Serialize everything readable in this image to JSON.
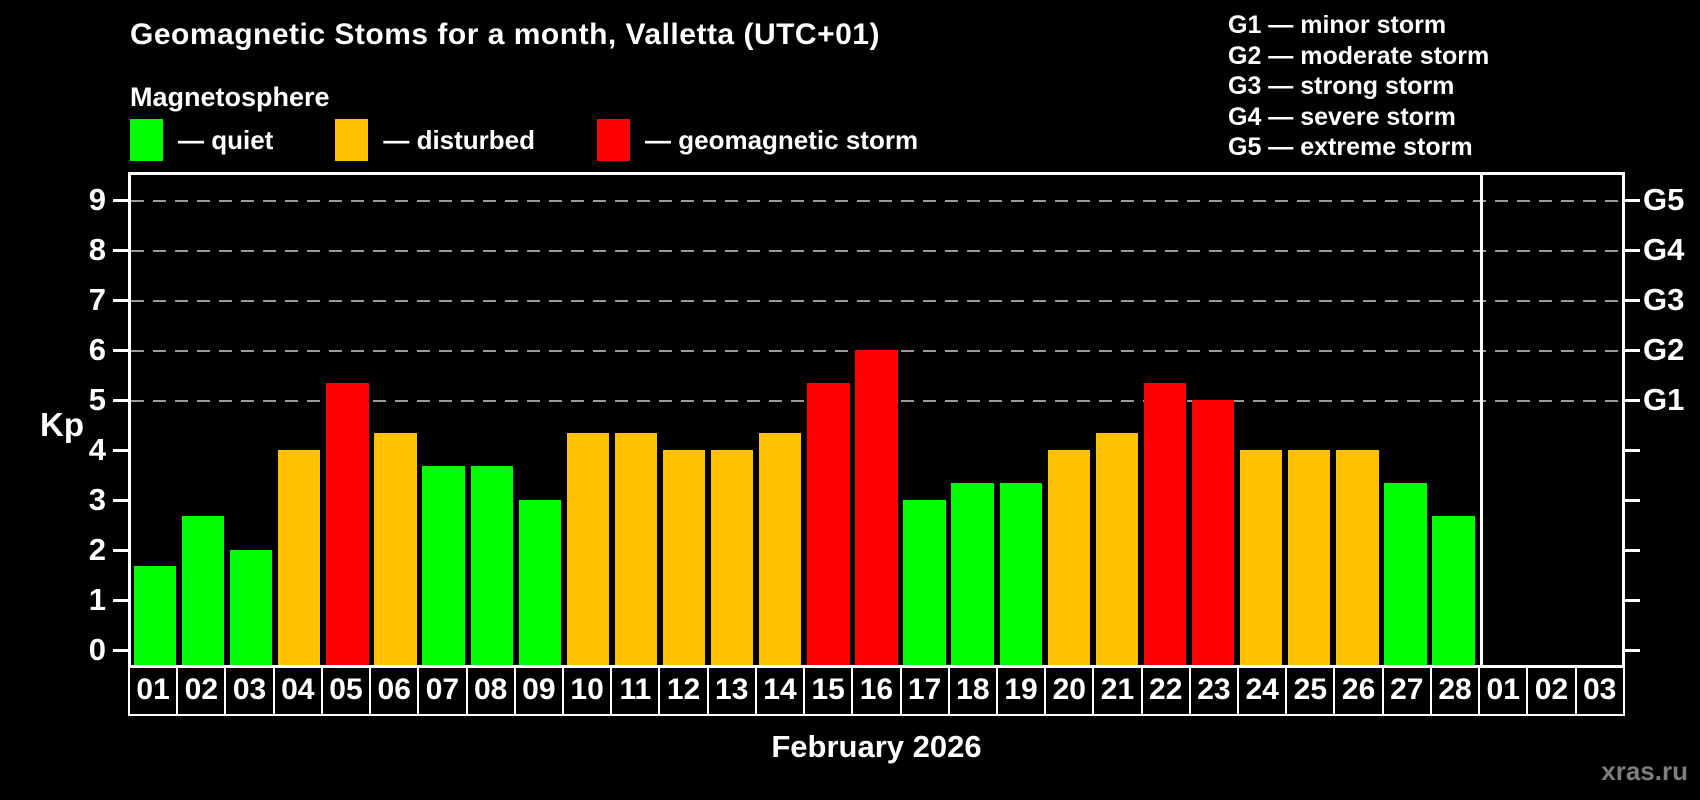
{
  "header": {
    "title": "Geomagnetic Stoms for a month, Valletta (UTC+01)"
  },
  "legend": {
    "heading": "Magnetosphere",
    "items": [
      {
        "name": "quiet",
        "label": "— quiet",
        "color": "#00ff00"
      },
      {
        "name": "disturbed",
        "label": "— disturbed",
        "color": "#ffc000"
      },
      {
        "name": "storm",
        "label": "— geomagnetic storm",
        "color": "#ff0000"
      }
    ]
  },
  "g_legend": {
    "items": [
      "G1 — minor storm",
      "G2 — moderate storm",
      "G3 — strong storm",
      "G4 — severe storm",
      "G5 — extreme storm"
    ]
  },
  "axes": {
    "left_label": "Kp",
    "left_ticks": [
      0,
      1,
      2,
      3,
      4,
      5,
      6,
      7,
      8,
      9
    ],
    "right_labels": [
      {
        "label": "G1",
        "kp": 5
      },
      {
        "label": "G2",
        "kp": 6
      },
      {
        "label": "G3",
        "kp": 7
      },
      {
        "label": "G4",
        "kp": 8
      },
      {
        "label": "G5",
        "kp": 9
      }
    ]
  },
  "chart_data": {
    "type": "bar",
    "title": "Geomagnetic Stoms for a month, Valletta (UTC+01)",
    "xlabel": "February 2026",
    "ylabel": "Kp",
    "ylim": [
      0,
      9
    ],
    "grid_levels_kp": [
      5,
      6,
      7,
      8,
      9
    ],
    "month_separator_after_index": 27,
    "categories": [
      "01",
      "02",
      "03",
      "04",
      "05",
      "06",
      "07",
      "08",
      "09",
      "10",
      "11",
      "12",
      "13",
      "14",
      "15",
      "16",
      "17",
      "18",
      "19",
      "20",
      "21",
      "22",
      "23",
      "24",
      "25",
      "26",
      "27",
      "28",
      "01",
      "02",
      "03"
    ],
    "values": [
      1.67,
      2.67,
      2,
      4,
      5.33,
      4.33,
      3.67,
      3.67,
      3,
      4.33,
      4.33,
      4,
      4,
      4.33,
      5.33,
      6,
      3,
      3.33,
      3.33,
      4,
      4.33,
      5.33,
      5,
      4,
      4,
      4,
      3.33,
      2.67,
      null,
      null,
      null
    ],
    "statuses": [
      "quiet",
      "quiet",
      "quiet",
      "disturbed",
      "storm",
      "disturbed",
      "quiet",
      "quiet",
      "quiet",
      "disturbed",
      "disturbed",
      "disturbed",
      "disturbed",
      "disturbed",
      "storm",
      "storm",
      "quiet",
      "quiet",
      "quiet",
      "disturbed",
      "disturbed",
      "storm",
      "storm",
      "disturbed",
      "disturbed",
      "disturbed",
      "quiet",
      "quiet",
      null,
      null,
      null
    ]
  },
  "footer": {
    "watermark": "xras.ru"
  }
}
